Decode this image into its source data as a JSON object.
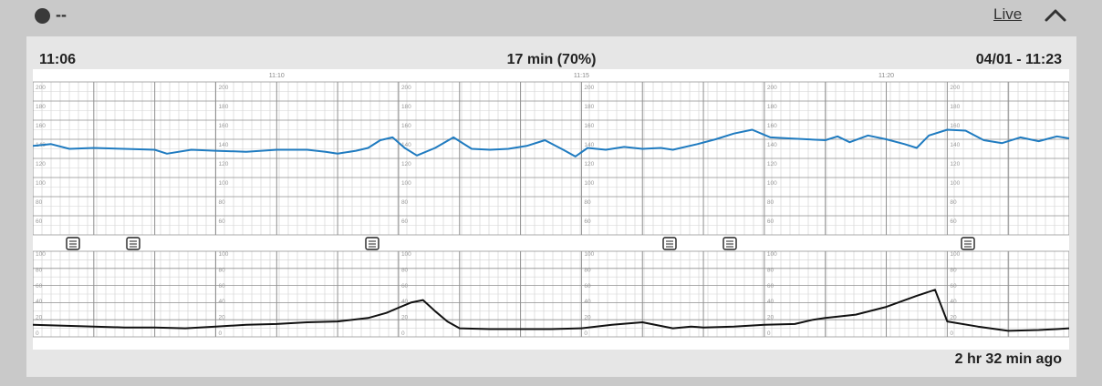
{
  "monitor": {
    "status_text": "--",
    "live_label": "Live",
    "collapse_icon": "chevron-up-icon"
  },
  "strip": {
    "start_time": "11:06",
    "summary": "17 min (70%)",
    "end_label": "04/01 - 11:23",
    "ago_label": "2 hr 32 min ago",
    "time_ticks": [
      "11:10",
      "11:15",
      "11:20"
    ],
    "fhr_scale": [
      "200",
      "180",
      "160",
      "140",
      "120",
      "100",
      "80",
      "60"
    ],
    "toco_scale": [
      "100",
      "80",
      "60",
      "40",
      "20",
      "0"
    ],
    "note_icon": "note-icon",
    "colors": {
      "fhr_trace": "#1f7bc0",
      "toco_trace": "#111111",
      "grid_minor": "#d4d4d4",
      "grid_major": "#8f8f8f"
    }
  },
  "chart_data": {
    "type": "line",
    "x_range": [
      "11:06",
      "11:23"
    ],
    "panels": [
      {
        "ylim": [
          50,
          210
        ],
        "series": [
          {
            "x": [
              0,
              0.3,
              0.6,
              1.0,
              1.5,
              2.0,
              2.2,
              2.6,
              3.0,
              3.5,
              4.0,
              4.5,
              4.8,
              5.0,
              5.3,
              5.5,
              5.7,
              5.9,
              6.1,
              6.3,
              6.6,
              6.9,
              7.2,
              7.5,
              7.8,
              8.1,
              8.4,
              8.7,
              8.9,
              9.1,
              9.4,
              9.7,
              10.0,
              10.3,
              10.5,
              10.9,
              11.2,
              11.5,
              11.8,
              12.1,
              12.4,
              12.7,
              13.0,
              13.2,
              13.4,
              13.7,
              14.0,
              14.3,
              14.5,
              14.7,
              15.0,
              15.3,
              15.6,
              15.9,
              16.2,
              16.5,
              16.8,
              17.0
            ],
            "y": [
              143,
              145,
              140,
              141,
              140,
              139,
              135,
              139,
              138,
              137,
              139,
              139,
              137,
              135,
              138,
              141,
              149,
              152,
              141,
              133,
              141,
              152,
              140,
              139,
              140,
              143,
              149,
              139,
              132,
              141,
              139,
              142,
              140,
              141,
              139,
              145,
              150,
              156,
              160,
              152,
              151,
              150,
              149,
              153,
              147,
              154,
              150,
              145,
              141,
              154,
              160,
              159,
              149,
              146,
              152,
              148,
              153,
              151
            ]
          }
        ]
      },
      {
        "ylim": [
          0,
          100
        ],
        "series": [
          {
            "x": [
              0,
              0.5,
              1.0,
              1.5,
              2.0,
              2.5,
              3.0,
              3.5,
              4.0,
              4.5,
              5.0,
              5.5,
              5.8,
              6.0,
              6.2,
              6.4,
              6.6,
              6.8,
              7.0,
              7.5,
              8.0,
              8.5,
              9.0,
              9.5,
              10.0,
              10.5,
              10.8,
              11.0,
              11.5,
              12.0,
              12.5,
              12.8,
              13.0,
              13.5,
              14.0,
              14.5,
              14.8,
              15.0,
              15.5,
              16.0,
              16.5,
              16.8,
              17.0
            ],
            "y": [
              14,
              13,
              12,
              11,
              11,
              10,
              12,
              14,
              15,
              17,
              18,
              22,
              28,
              34,
              40,
              43,
              30,
              18,
              10,
              9,
              9,
              9,
              10,
              14,
              17,
              10,
              12,
              11,
              12,
              14,
              15,
              20,
              22,
              26,
              35,
              48,
              55,
              18,
              12,
              7,
              8,
              9,
              10
            ]
          }
        ]
      }
    ]
  }
}
